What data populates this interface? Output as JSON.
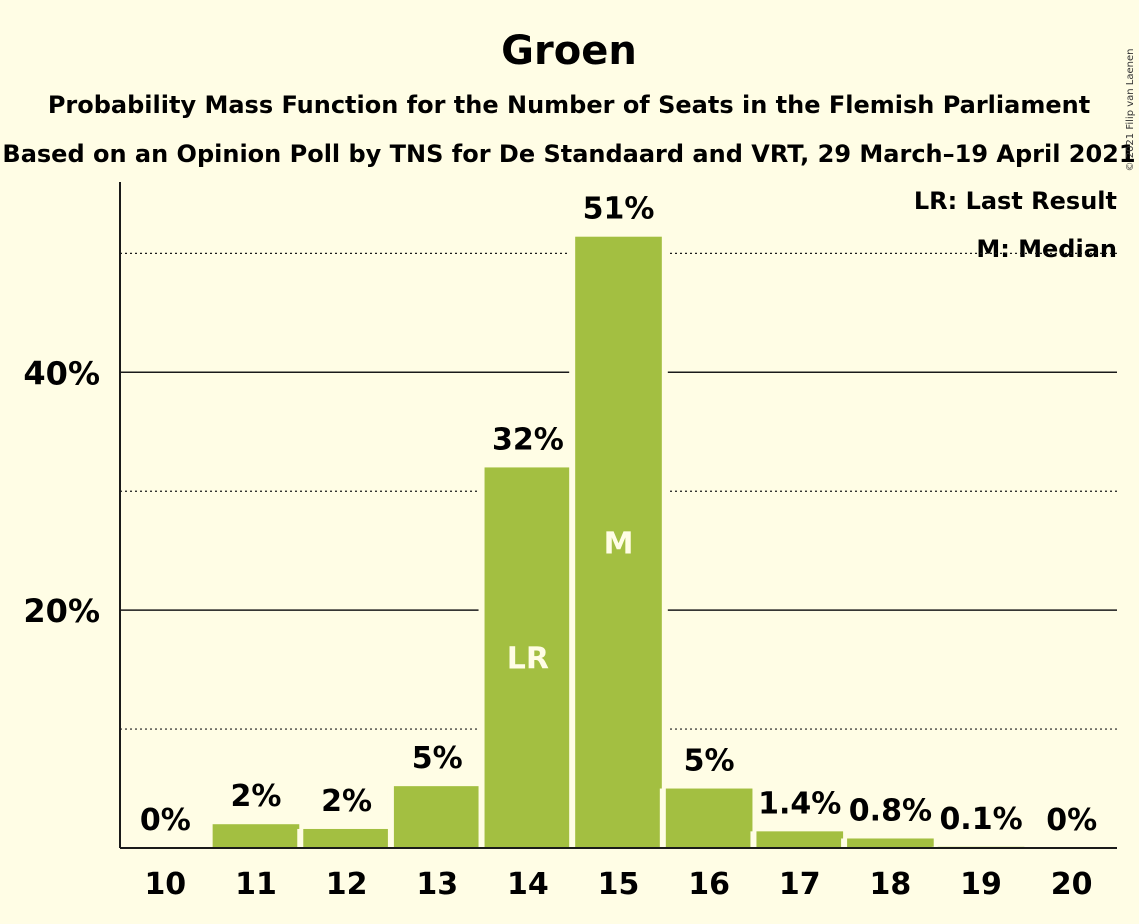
{
  "chart_data": {
    "type": "bar",
    "title": "Groen",
    "subtitle_1": "Probability Mass Function for the Number of Seats in the Flemish Parliament",
    "subtitle_2": "Based on an Opinion Poll by TNS for De Standaard and VRT, 29 March–19 April 2021",
    "categories": [
      "10",
      "11",
      "12",
      "13",
      "14",
      "15",
      "16",
      "17",
      "18",
      "19",
      "20"
    ],
    "values": [
      0,
      2.0,
      1.6,
      5.2,
      32.0,
      51.4,
      5.0,
      1.4,
      0.8,
      0.1,
      0
    ],
    "data_labels": [
      "0%",
      "2%",
      "2%",
      "5%",
      "32%",
      "51%",
      "5%",
      "1.4%",
      "0.8%",
      "0.1%",
      "0%"
    ],
    "inbar_labels": {
      "14": "LR",
      "15": "M"
    },
    "yticks": [
      20,
      40
    ],
    "ytick_labels": [
      "20%",
      "40%"
    ],
    "dotted_gridlines": [
      10,
      30,
      50
    ],
    "ylim": [
      0,
      56
    ],
    "bar_color": "#a3bf41",
    "background": "#fffde5",
    "legend": [
      "LR: Last Result",
      "M: Median"
    ],
    "legend_position": "top-right",
    "copyright": "© 2021 Filip van Laenen"
  }
}
